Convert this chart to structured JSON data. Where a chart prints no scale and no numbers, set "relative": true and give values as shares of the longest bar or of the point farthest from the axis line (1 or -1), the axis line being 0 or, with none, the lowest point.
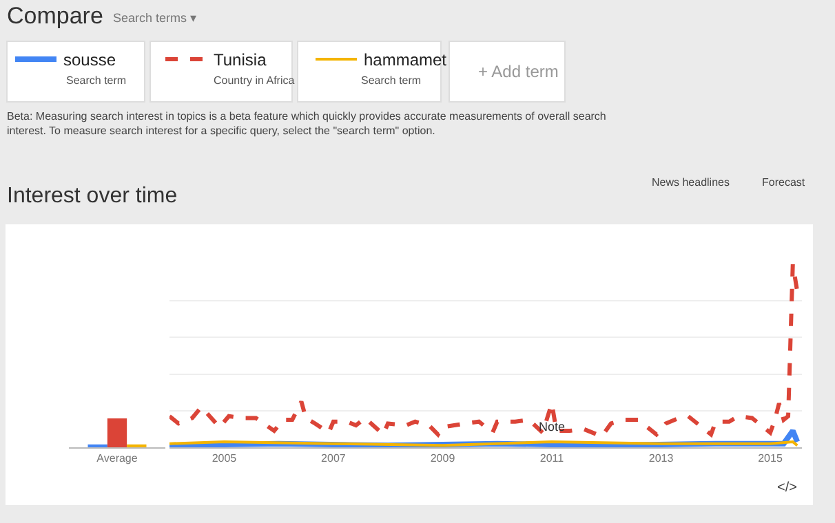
{
  "chart_data": [
    {
      "type": "bar",
      "title": "Interest over time",
      "categories": [
        "Average"
      ],
      "relative": true,
      "series": [
        {
          "color": "#4285f4",
          "values": [
            0.1
          ]
        },
        {
          "color": "#db4437",
          "values": [
            1
          ]
        },
        {
          "color": "#f4b400",
          "values": [
            0.1
          ]
        }
      ],
      "annotations": [
        "Compare",
        "Search terms ▾",
        "Search term",
        "Country in Africa",
        "Search term",
        "+ Add term",
        "Beta: Measuring search interest in topics is a beta feature which quickly provides accurate measurements of overall search interest. To measure search interest for a specific query, select the \"search term\" option.",
        "News headlines",
        "Forecast",
        "</>"
      ]
    },
    {
      "type": "line",
      "relative": true,
      "xlim": [
        "2004-01",
        "2015-08"
      ],
      "xticks": [
        "2005",
        "2007",
        "2009",
        "2011",
        "2013",
        "2015"
      ],
      "grid": "y",
      "legend": "top",
      "series": [
        {
          "name": "sousse",
          "color": "#4285f4",
          "line_style": "solid",
          "x": [
            "2004-01",
            "2006-01",
            "2008-01",
            "2010-01",
            "2012-01",
            "2014-01",
            "2015-04",
            "2015-06",
            "2015-07"
          ],
          "values": [
            0.01,
            0.02,
            0.01,
            0.02,
            0.01,
            0.02,
            0.02,
            0.09,
            0.03
          ]
        },
        {
          "name": "Tunisia",
          "color": "#db4437",
          "line_style": "dashed",
          "x": [
            "2004-01",
            "2004-03",
            "2004-06",
            "2004-08",
            "2004-12",
            "2005-02",
            "2005-05",
            "2005-08",
            "2005-12",
            "2006-02",
            "2006-04",
            "2006-06",
            "2006-07",
            "2006-09",
            "2006-12",
            "2007-01",
            "2007-04",
            "2007-06",
            "2007-08",
            "2007-12",
            "2008-01",
            "2008-05",
            "2008-07",
            "2008-10",
            "2008-12",
            "2009-01",
            "2009-06",
            "2009-09",
            "2009-12",
            "2010-01",
            "2010-05",
            "2010-08",
            "2010-11",
            "2011-01",
            "2011-02",
            "2011-05",
            "2011-08",
            "2011-12",
            "2012-02",
            "2012-05",
            "2012-08",
            "2012-12",
            "2013-02",
            "2013-05",
            "2013-07",
            "2013-12",
            "2014-01",
            "2014-04",
            "2014-06",
            "2014-09",
            "2015-01",
            "2015-02",
            "2015-03",
            "2015-04",
            "2015-05",
            "2015-06",
            "2015-07"
          ],
          "values": [
            0.17,
            0.13,
            0.16,
            0.22,
            0.11,
            0.17,
            0.16,
            0.16,
            0.09,
            0.15,
            0.15,
            0.25,
            0.16,
            0.13,
            0.08,
            0.14,
            0.14,
            0.12,
            0.16,
            0.07,
            0.13,
            0.12,
            0.14,
            0.12,
            0.07,
            0.11,
            0.13,
            0.14,
            0.08,
            0.14,
            0.14,
            0.15,
            0.08,
            0.24,
            0.09,
            0.09,
            0.1,
            0.06,
            0.13,
            0.15,
            0.15,
            0.07,
            0.13,
            0.16,
            0.17,
            0.07,
            0.14,
            0.14,
            0.17,
            0.16,
            0.08,
            0.15,
            0.24,
            0.15,
            0.17,
            1.0,
            0.85
          ]
        },
        {
          "name": "hammamet",
          "color": "#f4b400",
          "line_style": "solid",
          "x": [
            "2004-01",
            "2005-01",
            "2007-01",
            "2009-01",
            "2011-01",
            "2013-01",
            "2015-01",
            "2015-06",
            "2015-07"
          ],
          "values": [
            0.02,
            0.03,
            0.02,
            0.01,
            0.03,
            0.02,
            0.02,
            0.03,
            0.01
          ]
        }
      ],
      "annotations": [
        {
          "text": "Note",
          "x": "2011-01",
          "y": 0.06
        }
      ]
    }
  ]
}
